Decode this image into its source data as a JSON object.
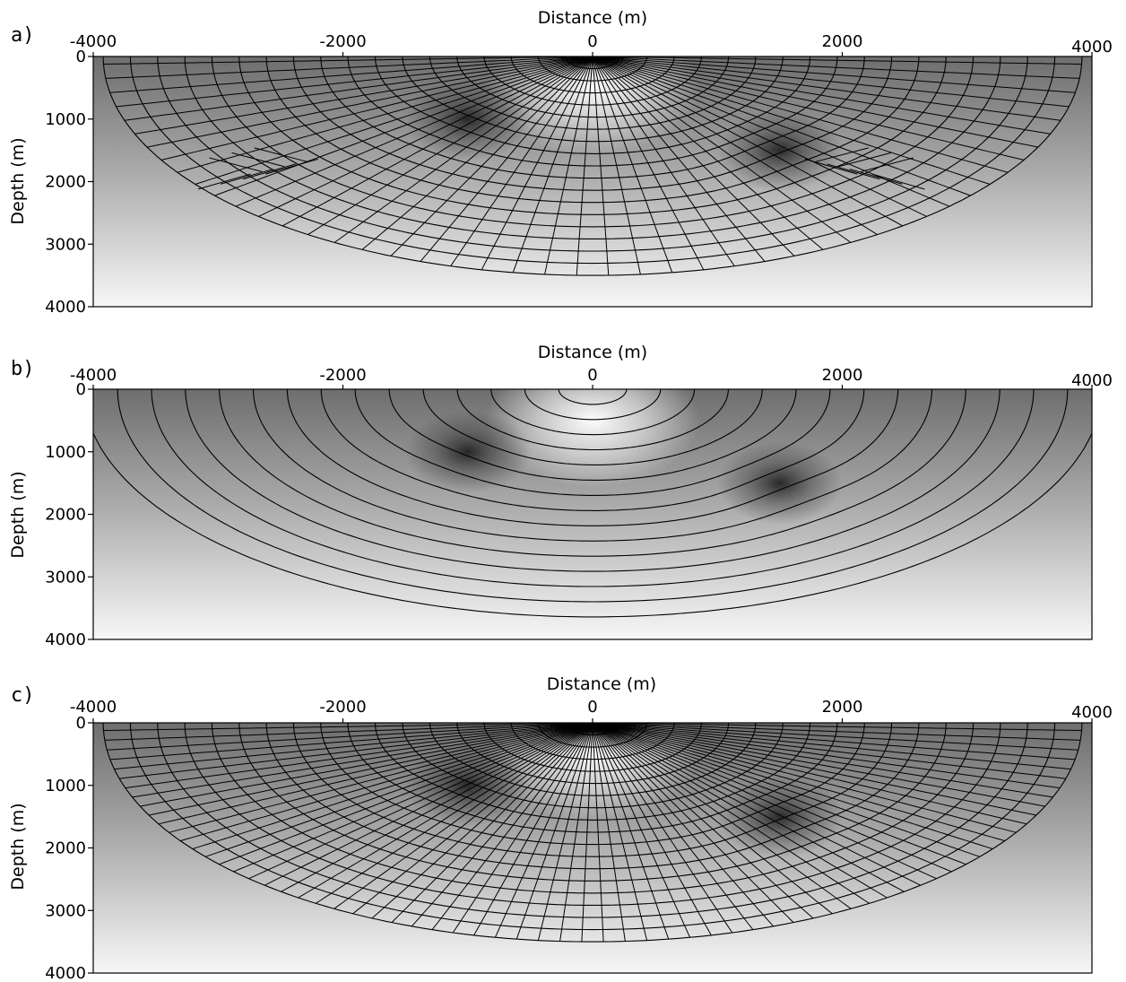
{
  "chart_data": [
    {
      "type": "wavefront-ray-plot",
      "panel_label": "a)",
      "xlabel": "Distance (m)",
      "ylabel": "Depth (m)",
      "xlim": [
        -4000,
        4000
      ],
      "ylim": [
        0,
        4000
      ],
      "x_ticks": [
        "-4000",
        "-2000",
        "0",
        "2000",
        "4000"
      ],
      "y_ticks": [
        "0",
        "1000",
        "2000",
        "3000",
        "4000"
      ],
      "source": {
        "x": 0,
        "depth": 0
      },
      "background": "velocity model: grey gradient increasing with depth, bright high-velocity zone near source, two dark low-velocity anomalies",
      "anomalies": [
        {
          "x": -1000,
          "depth": 1000
        },
        {
          "x": 1500,
          "depth": 1500
        }
      ],
      "wavefront_count": 18,
      "max_wavefront_depth": 3500,
      "ray_count": 48,
      "ray_angle_range_deg": [
        -88,
        88
      ],
      "caustics": true
    },
    {
      "type": "wavefront-plot",
      "panel_label": "b)",
      "xlabel": "Distance (m)",
      "ylabel": "Depth (m)",
      "xlim": [
        -4000,
        4000
      ],
      "ylim": [
        0,
        4000
      ],
      "x_ticks": [
        "-4000",
        "-2000",
        "0",
        "2000",
        "4000"
      ],
      "y_ticks": [
        "0",
        "1000",
        "2000",
        "3000",
        "4000"
      ],
      "source": {
        "x": 0,
        "depth": 0
      },
      "anomalies": [
        {
          "x": -1000,
          "depth": 1000
        },
        {
          "x": 1500,
          "depth": 1500
        }
      ],
      "wavefront_count": 15,
      "max_wavefront_depth": 3640,
      "rays_shown": false
    },
    {
      "type": "wavefront-ray-plot",
      "panel_label": "c)",
      "xlabel": "Distance (m)",
      "ylabel": "Depth (m)",
      "xlim": [
        -4000,
        4000
      ],
      "ylim": [
        0,
        4000
      ],
      "x_ticks": [
        "-4000",
        "-2000",
        "0",
        "2000",
        "4000"
      ],
      "y_ticks": [
        "0",
        "1000",
        "2000",
        "3000",
        "4000"
      ],
      "source": {
        "x": 0,
        "depth": 0
      },
      "anomalies": [
        {
          "x": -1000,
          "depth": 1000
        },
        {
          "x": 1500,
          "depth": 1500
        }
      ],
      "wavefront_count": 18,
      "max_wavefront_depth": 3500,
      "ray_count": 70,
      "ray_angle_range_deg": [
        -88,
        88
      ],
      "caustics": false
    }
  ]
}
